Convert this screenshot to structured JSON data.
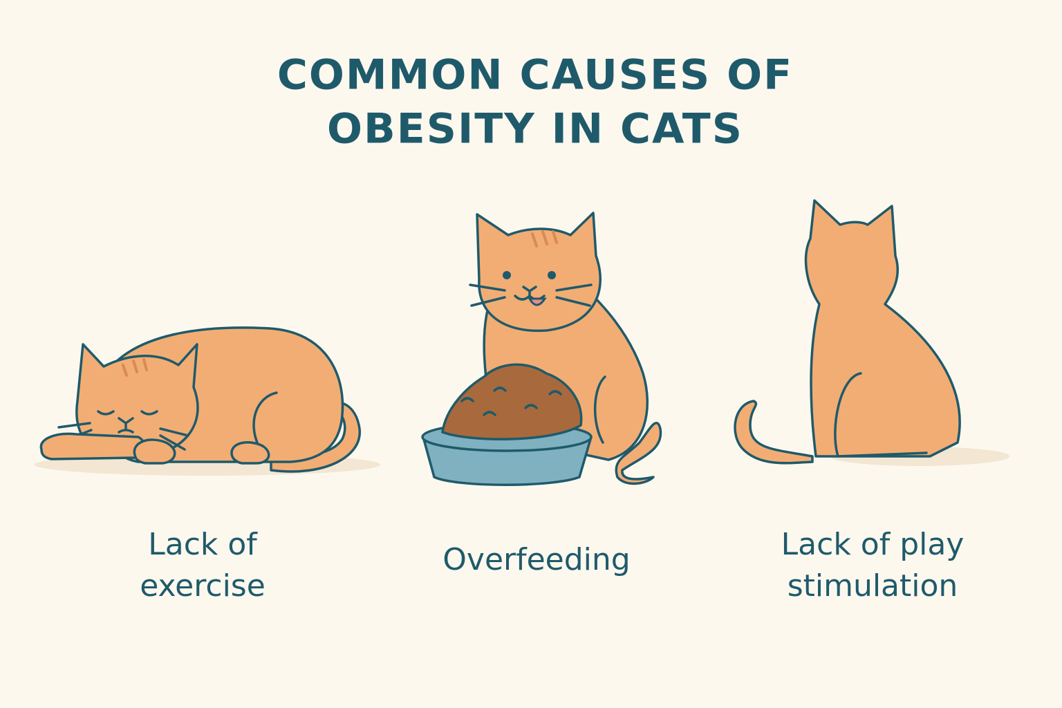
{
  "title": {
    "lines": [
      "COMMON CAUSES OF",
      "OBESITY IN CATS"
    ]
  },
  "causes": [
    {
      "lines": [
        "Lack of",
        "exercise"
      ]
    },
    {
      "lines": [
        "Overfeeding"
      ]
    },
    {
      "lines": [
        "Lack of play",
        "stimulation"
      ]
    }
  ]
}
